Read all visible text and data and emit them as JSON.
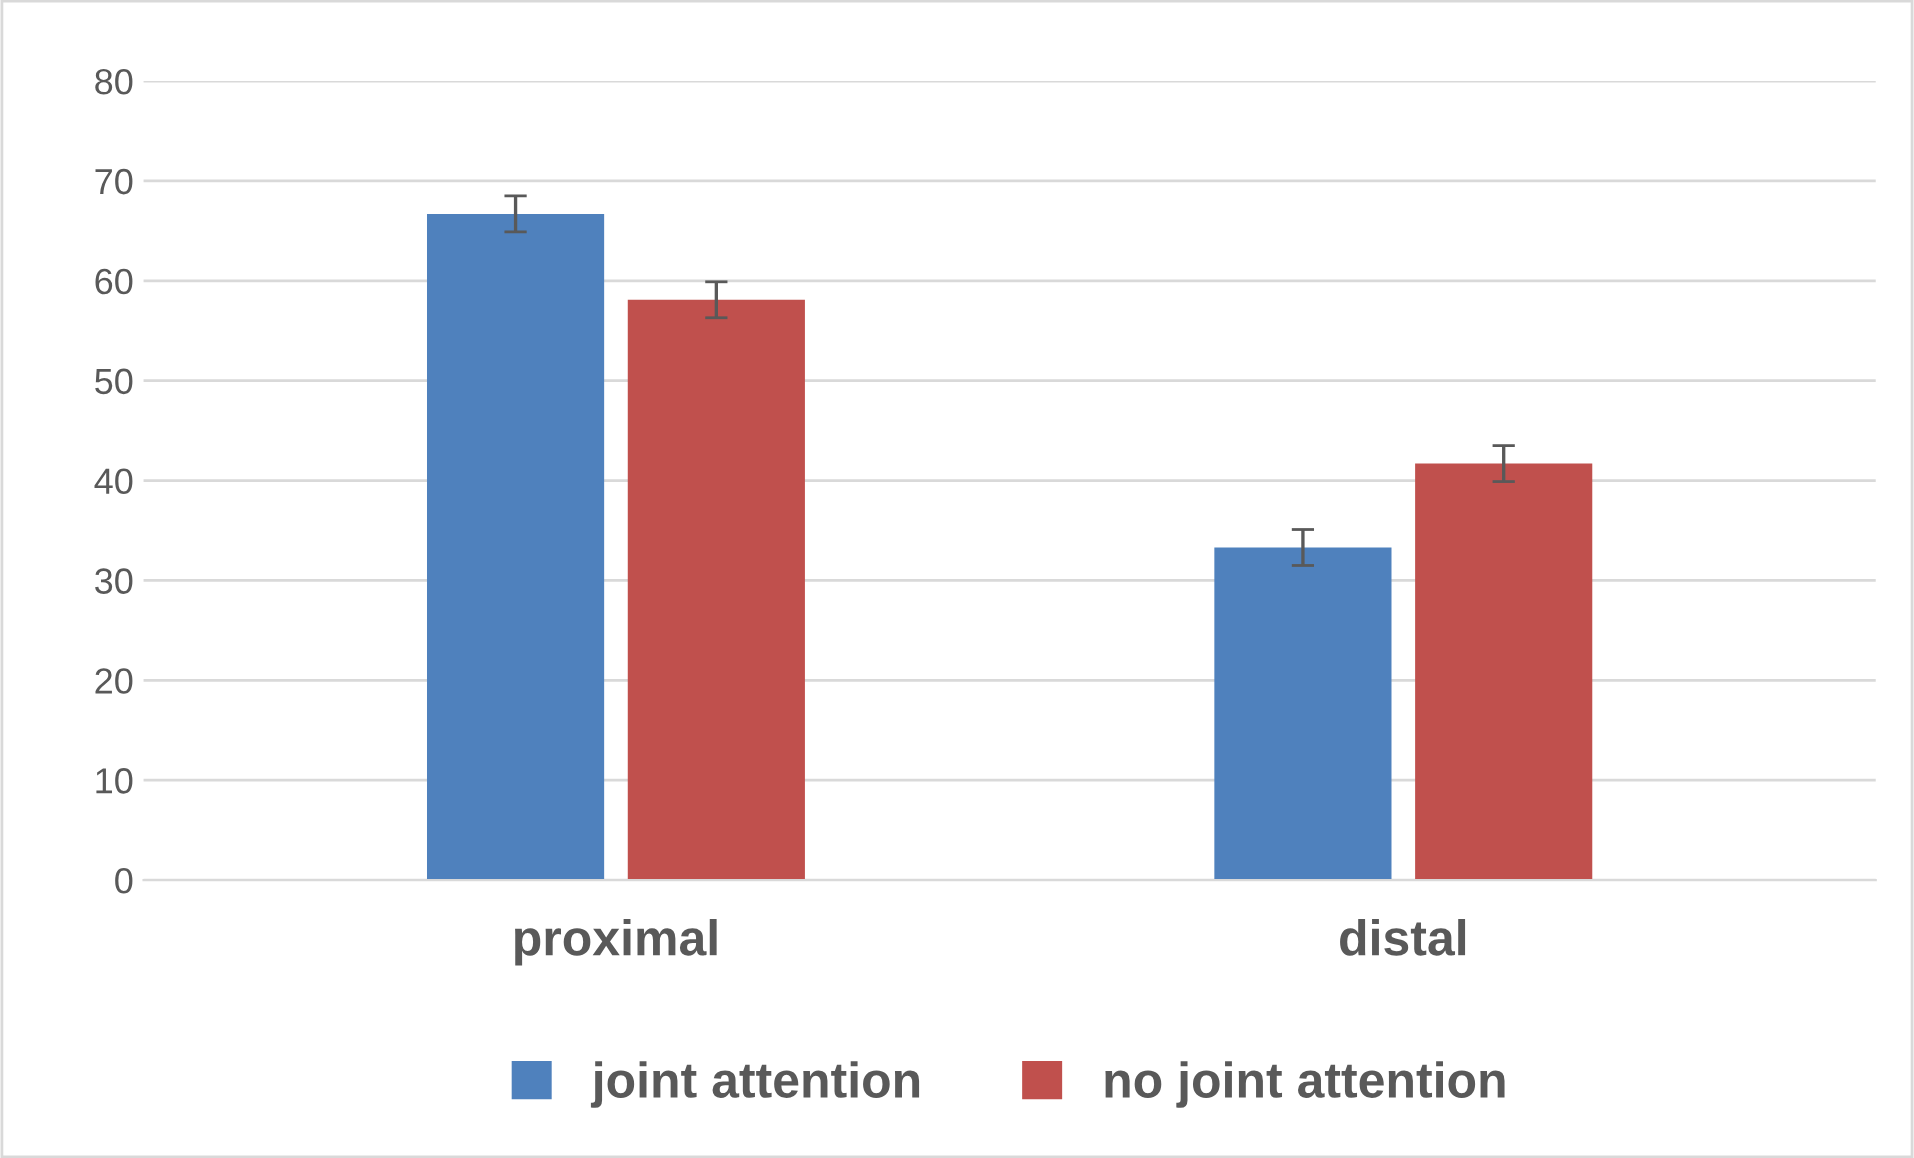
{
  "chart_data": {
    "type": "bar",
    "categories": [
      "proximal",
      "distal"
    ],
    "series": [
      {
        "name": "joint attention",
        "color": "#4f81bd",
        "values": [
          66.7,
          33.3
        ],
        "errors": [
          1.8,
          1.8
        ]
      },
      {
        "name": "no joint attention",
        "color": "#c0504d",
        "values": [
          58.1,
          41.7
        ],
        "errors": [
          1.8,
          1.8
        ]
      }
    ],
    "ylim": [
      0,
      80
    ],
    "yticks": [
      0,
      10,
      20,
      30,
      40,
      50,
      60,
      70,
      80
    ],
    "grid": "y",
    "legend": "bottom"
  }
}
